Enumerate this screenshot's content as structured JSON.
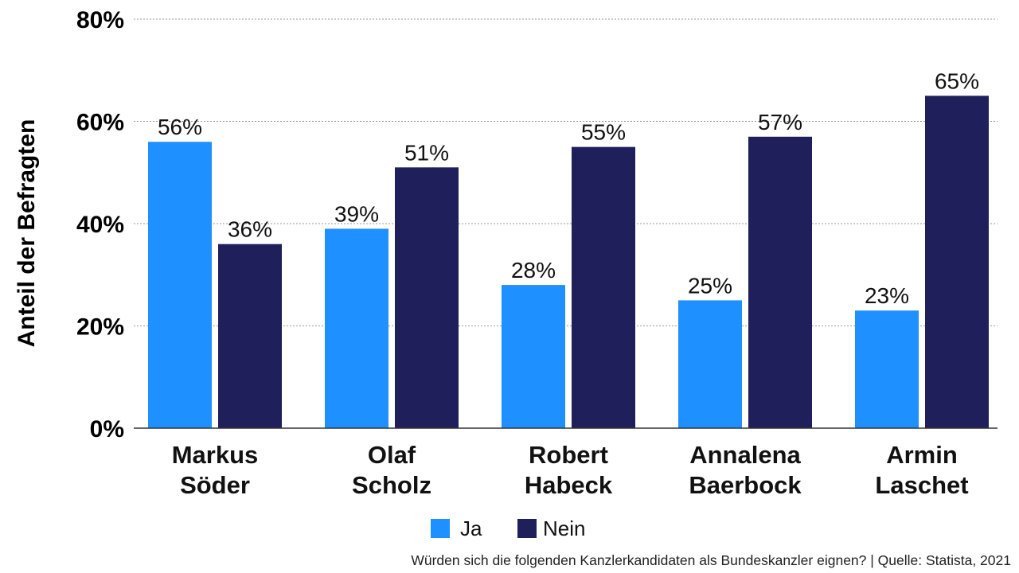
{
  "chart_data": {
    "type": "bar",
    "title": "",
    "xlabel": "",
    "ylabel": "Anteil der Befragten",
    "ylim": [
      0,
      80
    ],
    "yticks": [
      0,
      20,
      40,
      60,
      80
    ],
    "ytick_labels": [
      "0%",
      "20%",
      "40%",
      "60%",
      "80%"
    ],
    "grid": true,
    "categories": [
      [
        "Markus",
        "Söder"
      ],
      [
        "Olaf",
        "Scholz"
      ],
      [
        "Robert",
        "Habeck"
      ],
      [
        "Annalena",
        "Baerbock"
      ],
      [
        "Armin",
        "Laschet"
      ]
    ],
    "series": [
      {
        "name": "Ja",
        "color": "#1e90ff",
        "values": [
          56,
          39,
          28,
          25,
          23
        ],
        "labels": [
          "56%",
          "39%",
          "28%",
          "25%",
          "23%"
        ]
      },
      {
        "name": "Nein",
        "color": "#1f1f5b",
        "values": [
          36,
          51,
          55,
          57,
          65
        ],
        "labels": [
          "36%",
          "51%",
          "55%",
          "57%",
          "65%"
        ]
      }
    ],
    "legend_position": "bottom-center",
    "source": "Würden sich die folgenden Kanzlerkandidaten als Bundeskanzler eignen? | Quelle: Statista, 2021"
  }
}
